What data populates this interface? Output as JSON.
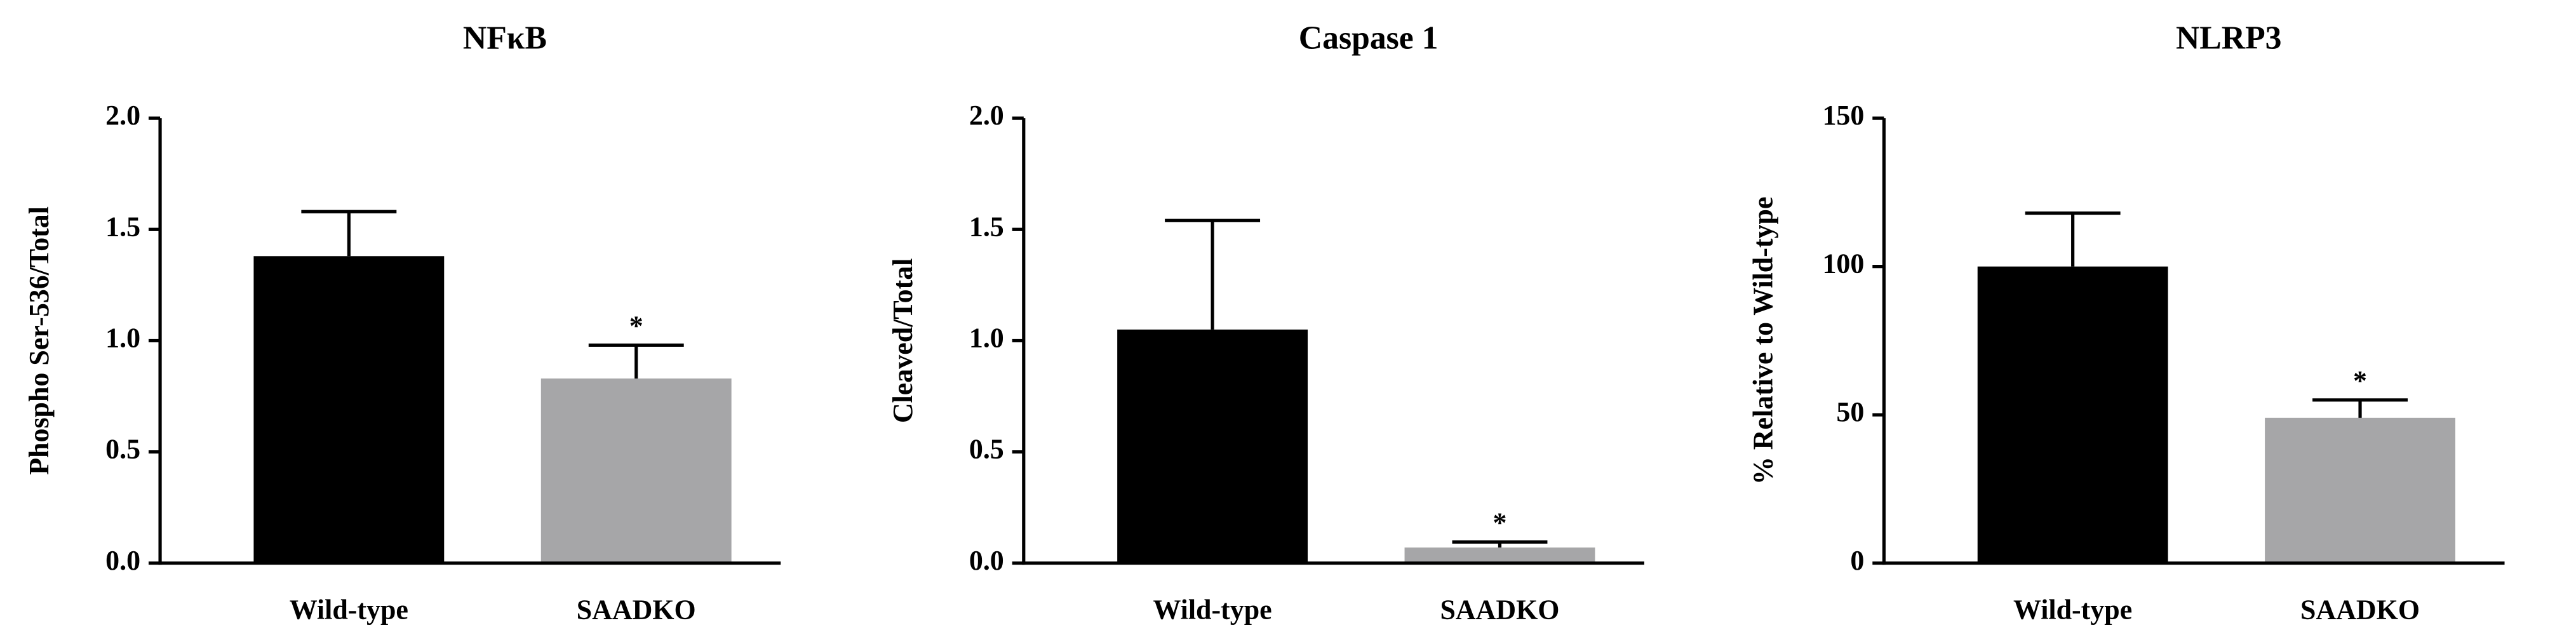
{
  "chart_data": [
    {
      "type": "bar",
      "title": "NFκB",
      "ylabel": "Phospho Ser-536/Total",
      "categories": [
        "Wild-type",
        "SAADKO"
      ],
      "values": [
        1.38,
        0.83
      ],
      "errors": [
        0.2,
        0.15
      ],
      "colors": [
        "#000000",
        "#a6a6a8"
      ],
      "significance": [
        null,
        "*"
      ],
      "ylim": [
        0,
        2
      ],
      "yticks": [
        {
          "value": 0,
          "label": "0.0"
        },
        {
          "value": 0.5,
          "label": "0.5"
        },
        {
          "value": 1,
          "label": "1.0"
        },
        {
          "value": 1.5,
          "label": "1.5"
        },
        {
          "value": 2,
          "label": "2.0"
        }
      ]
    },
    {
      "type": "bar",
      "title": "Caspase 1",
      "ylabel": "Cleaved/Total",
      "categories": [
        "Wild-type",
        "SAADKO"
      ],
      "values": [
        1.05,
        0.07
      ],
      "errors": [
        0.49,
        0.025
      ],
      "colors": [
        "#000000",
        "#a6a6a8"
      ],
      "significance": [
        null,
        "*"
      ],
      "ylim": [
        0,
        2
      ],
      "yticks": [
        {
          "value": 0,
          "label": "0.0"
        },
        {
          "value": 0.5,
          "label": "0.5"
        },
        {
          "value": 1,
          "label": "1.0"
        },
        {
          "value": 1.5,
          "label": "1.5"
        },
        {
          "value": 2,
          "label": "2.0"
        }
      ]
    },
    {
      "type": "bar",
      "title": "NLRP3",
      "ylabel": "% Relative to Wild-type",
      "categories": [
        "Wild-type",
        "SAADKO"
      ],
      "values": [
        100,
        49
      ],
      "errors": [
        18,
        6
      ],
      "colors": [
        "#000000",
        "#a6a6a8"
      ],
      "significance": [
        null,
        "*"
      ],
      "ylim": [
        0,
        150
      ],
      "yticks": [
        0,
        50,
        100,
        150
      ]
    }
  ]
}
